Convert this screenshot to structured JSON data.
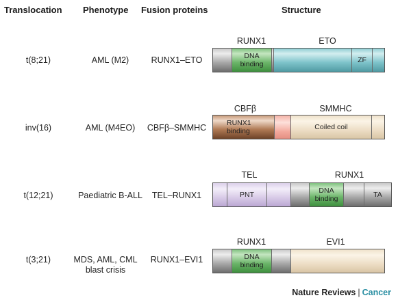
{
  "headers": {
    "translocation": "Translocation",
    "phenotype": "Phenotype",
    "fusion": "Fusion proteins",
    "structure": "Structure"
  },
  "rows": [
    {
      "translocation": "t(8;21)",
      "phenotype": "AML (M2)",
      "fusion": "RUNX1–ETO",
      "labels": [
        "RUNX1",
        "ETO"
      ],
      "segments": [
        "DNA binding",
        "ZF"
      ]
    },
    {
      "translocation": "inv(16)",
      "phenotype": "AML (M4EO)",
      "fusion": "CBFβ–SMMHC",
      "labels": [
        "CBFβ",
        "SMMHC"
      ],
      "segments": [
        "RUNX1 binding",
        "Coiled coil"
      ]
    },
    {
      "translocation": "t(12;21)",
      "phenotype": "Paediatric B-ALL",
      "fusion": "TEL–RUNX1",
      "labels": [
        "TEL",
        "RUNX1"
      ],
      "segments": [
        "PNT",
        "DNA binding",
        "TA"
      ]
    },
    {
      "translocation": "t(3;21)",
      "phenotype": "MDS, AML, CML blast crisis",
      "fusion": "RUNX1–EVI1",
      "labels": [
        "RUNX1",
        "EVI1"
      ],
      "segments": [
        "DNA binding"
      ]
    }
  ],
  "footer": {
    "publisher": "Nature Reviews",
    "separator": "|",
    "journal": "Cancer"
  }
}
